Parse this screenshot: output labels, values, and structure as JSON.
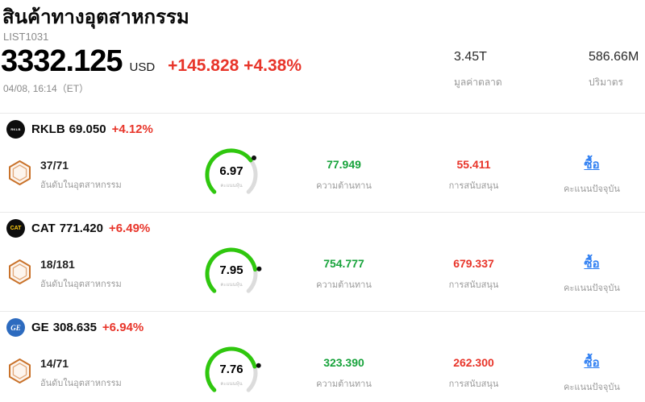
{
  "colors": {
    "up_red": "#e8352a",
    "value_green": "#17a33b",
    "value_red": "#e8352a",
    "signal_blue": "#2f7ff2",
    "gauge_green": "#2fc70e",
    "gauge_track": "#dcdcdc",
    "hex_orange": "#c9722a"
  },
  "header": {
    "title": "สินค้าทางอุตสาหกรรม",
    "list_id": "LIST1031",
    "price": "3332.125",
    "currency": "USD",
    "change": "+145.828 +4.38%",
    "timestamp": "04/08, 16:14（ET）",
    "market_cap": {
      "value": "3.45T",
      "label": "มูลค่าตลาด"
    },
    "volume": {
      "value": "586.66M",
      "label": "ปริมาตร"
    }
  },
  "rows": [
    {
      "ticker": "RKLB",
      "price": "69.050",
      "change": "+4.12%",
      "logo": {
        "text": "RKLB",
        "bg": "#0d0d0d",
        "fg": "#ffffff"
      },
      "rank": "37/71",
      "rank_label": "อันดับในอุตสาหกรรม",
      "score": "6.97",
      "score_label": "คะแนนหุ้น",
      "resistance": {
        "value": "77.949",
        "label": "ความต้านทาน"
      },
      "support": {
        "value": "55.411",
        "label": "การสนับสนุน"
      },
      "signal": {
        "value": "ซื้อ",
        "label": "คะแนนปัจจุบัน"
      }
    },
    {
      "ticker": "CAT",
      "price": "771.420",
      "change": "+6.49%",
      "logo": {
        "text": "CAT",
        "bg": "#0d0d0d",
        "fg": "#ffcd11"
      },
      "rank": "18/181",
      "rank_label": "อันดับในอุตสาหกรรม",
      "score": "7.95",
      "score_label": "คะแนนหุ้น",
      "resistance": {
        "value": "754.777",
        "label": "ความต้านทาน"
      },
      "support": {
        "value": "679.337",
        "label": "การสนับสนุน"
      },
      "signal": {
        "value": "ซื้อ",
        "label": "คะแนนปัจจุบัน"
      }
    },
    {
      "ticker": "GE",
      "price": "308.635",
      "change": "+6.94%",
      "logo": {
        "text": "GE",
        "bg": "#2d6bbf",
        "fg": "#ffffff"
      },
      "rank": "14/71",
      "rank_label": "อันดับในอุตสาหกรรม",
      "score": "7.76",
      "score_label": "คะแนนหุ้น",
      "resistance": {
        "value": "323.390",
        "label": "ความต้านทาน"
      },
      "support": {
        "value": "262.300",
        "label": "การสนับสนุน"
      },
      "signal": {
        "value": "ซื้อ",
        "label": "คะแนนปัจจุบัน"
      }
    }
  ]
}
